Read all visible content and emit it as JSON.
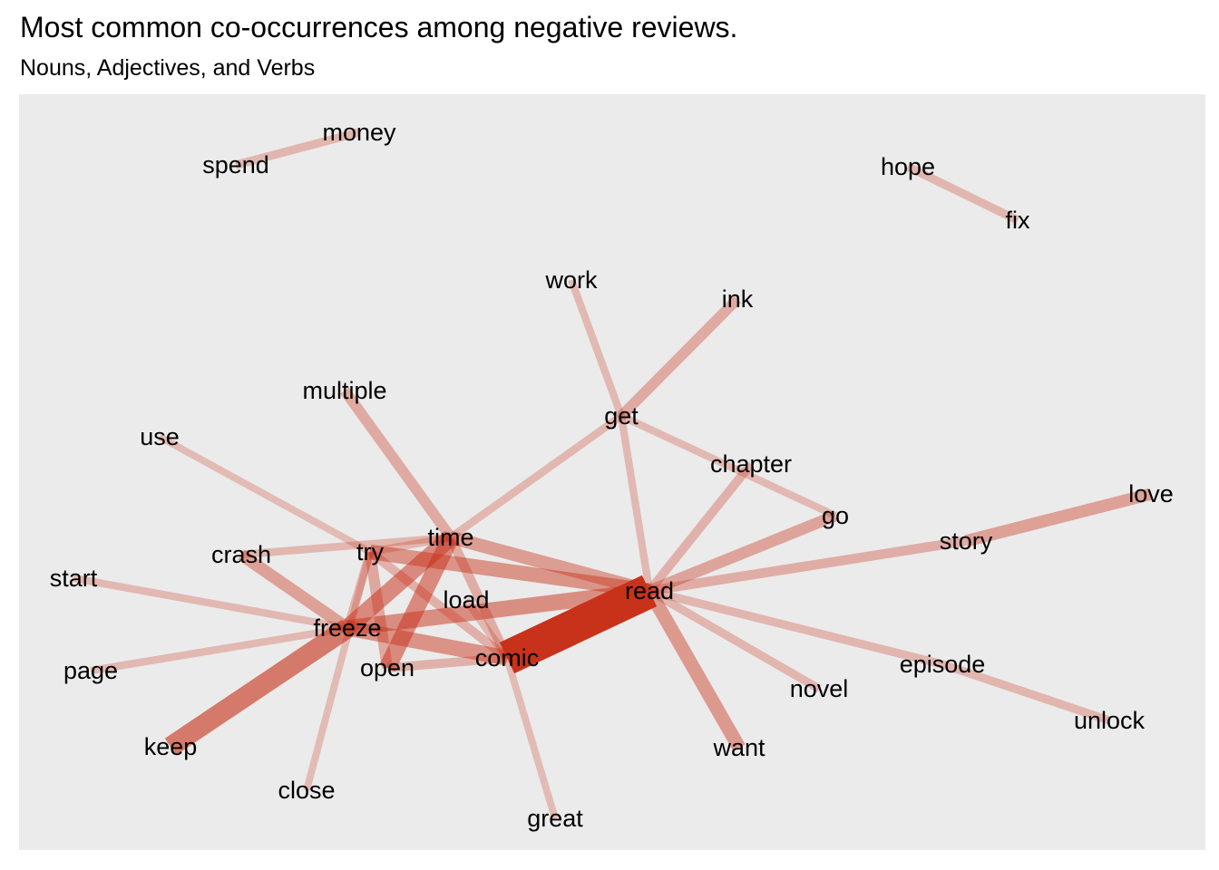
{
  "title": "Most common co-occurrences among negative reviews.",
  "subtitle": "Nouns, Adjectives, and Verbs",
  "edge_color": "#c8321a",
  "panel_color": "#ebebeb",
  "nodes": [
    {
      "id": "money",
      "label": "money"
    },
    {
      "id": "spend",
      "label": "spend"
    },
    {
      "id": "hope",
      "label": "hope"
    },
    {
      "id": "fix",
      "label": "fix"
    },
    {
      "id": "work",
      "label": "work"
    },
    {
      "id": "ink",
      "label": "ink"
    },
    {
      "id": "multiple",
      "label": "multiple"
    },
    {
      "id": "get",
      "label": "get"
    },
    {
      "id": "use",
      "label": "use"
    },
    {
      "id": "chapter",
      "label": "chapter"
    },
    {
      "id": "love",
      "label": "love"
    },
    {
      "id": "go",
      "label": "go"
    },
    {
      "id": "story",
      "label": "story"
    },
    {
      "id": "time",
      "label": "time"
    },
    {
      "id": "crash",
      "label": "crash"
    },
    {
      "id": "try",
      "label": "try"
    },
    {
      "id": "start",
      "label": "start"
    },
    {
      "id": "read",
      "label": "read"
    },
    {
      "id": "load",
      "label": "load"
    },
    {
      "id": "freeze",
      "label": "freeze"
    },
    {
      "id": "episode",
      "label": "episode"
    },
    {
      "id": "comic",
      "label": "comic"
    },
    {
      "id": "open",
      "label": "open"
    },
    {
      "id": "page",
      "label": "page"
    },
    {
      "id": "novel",
      "label": "novel"
    },
    {
      "id": "unlock",
      "label": "unlock"
    },
    {
      "id": "keep",
      "label": "keep"
    },
    {
      "id": "want",
      "label": "want"
    },
    {
      "id": "close",
      "label": "close"
    },
    {
      "id": "great",
      "label": "great"
    }
  ],
  "edges": [
    {
      "from": "comic",
      "to": "read",
      "weight": 1.0
    },
    {
      "from": "freeze",
      "to": "keep",
      "weight": 0.55
    },
    {
      "from": "time",
      "to": "open",
      "weight": 0.45
    },
    {
      "from": "time",
      "to": "freeze",
      "weight": 0.45
    },
    {
      "from": "freeze",
      "to": "read",
      "weight": 0.42
    },
    {
      "from": "freeze",
      "to": "comic",
      "weight": 0.4
    },
    {
      "from": "try",
      "to": "read",
      "weight": 0.38
    },
    {
      "from": "read",
      "to": "want",
      "weight": 0.35
    },
    {
      "from": "time",
      "to": "read",
      "weight": 0.33
    },
    {
      "from": "crash",
      "to": "freeze",
      "weight": 0.3
    },
    {
      "from": "story",
      "to": "love",
      "weight": 0.3
    },
    {
      "from": "read",
      "to": "go",
      "weight": 0.28
    },
    {
      "from": "try",
      "to": "open",
      "weight": 0.26
    },
    {
      "from": "multiple",
      "to": "time",
      "weight": 0.25
    },
    {
      "from": "get",
      "to": "ink",
      "weight": 0.25
    },
    {
      "from": "read",
      "to": "story",
      "weight": 0.22
    },
    {
      "from": "time",
      "to": "comic",
      "weight": 0.22
    },
    {
      "from": "try",
      "to": "comic",
      "weight": 0.2
    },
    {
      "from": "open",
      "to": "comic",
      "weight": 0.2
    },
    {
      "from": "read",
      "to": "chapter",
      "weight": 0.2
    },
    {
      "from": "read",
      "to": "episode",
      "weight": 0.18
    },
    {
      "from": "read",
      "to": "novel",
      "weight": 0.18
    },
    {
      "from": "episode",
      "to": "unlock",
      "weight": 0.18
    },
    {
      "from": "spend",
      "to": "money",
      "weight": 0.18
    },
    {
      "from": "hope",
      "to": "fix",
      "weight": 0.18
    },
    {
      "from": "crash",
      "to": "time",
      "weight": 0.16
    },
    {
      "from": "try",
      "to": "time",
      "weight": 0.16
    },
    {
      "from": "time",
      "to": "get",
      "weight": 0.16
    },
    {
      "from": "get",
      "to": "read",
      "weight": 0.15
    },
    {
      "from": "work",
      "to": "get",
      "weight": 0.15
    },
    {
      "from": "get",
      "to": "go",
      "weight": 0.15
    },
    {
      "from": "start",
      "to": "freeze",
      "weight": 0.15
    },
    {
      "from": "page",
      "to": "freeze",
      "weight": 0.15
    },
    {
      "from": "use",
      "to": "try",
      "weight": 0.14
    },
    {
      "from": "try",
      "to": "close",
      "weight": 0.14
    },
    {
      "from": "comic",
      "to": "great",
      "weight": 0.14
    },
    {
      "from": "try",
      "to": "freeze",
      "weight": 0.18
    },
    {
      "from": "load",
      "to": "comic",
      "weight": 0.16
    }
  ]
}
